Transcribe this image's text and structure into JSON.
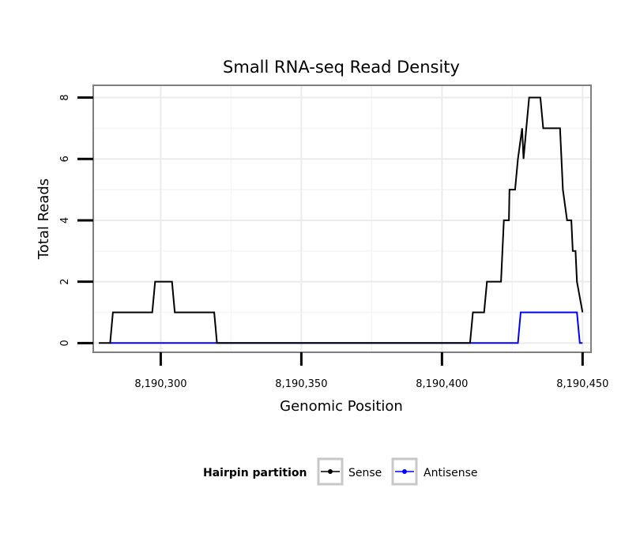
{
  "chart_data": {
    "type": "line",
    "title": "Small RNA-seq Read Density",
    "xlabel": "Genomic Position",
    "ylabel": "Total Reads",
    "xlim": [
      8190276,
      8190453
    ],
    "ylim": [
      -0.3,
      8.4
    ],
    "xticks": [
      8190300,
      8190350,
      8190400,
      8190450
    ],
    "xtick_labels": [
      "8,190,300",
      "8,190,350",
      "8,190,400",
      "8,190,450"
    ],
    "yticks": [
      0,
      2,
      4,
      6,
      8
    ],
    "ytick_labels": [
      "0",
      "2",
      "4",
      "6",
      "8"
    ],
    "grid": true,
    "legend_position": "bottom",
    "legend_title": "Hairpin partition",
    "series": [
      {
        "name": "Sense",
        "color": "#000000",
        "x": [
          8190278,
          8190282,
          8190283,
          8190297,
          8190298,
          8190304,
          8190305,
          8190319,
          8190320,
          8190410,
          8190411,
          8190415,
          8190416,
          8190421,
          8190422,
          8190422.5,
          8190423,
          8190423.8,
          8190424,
          8190426,
          8190427,
          8190428.5,
          8190429,
          8190430,
          8190431,
          8190435,
          8190436,
          8190440,
          8190441,
          8190442,
          8190443,
          8190444.5,
          8190445,
          8190446,
          8190446.5,
          8190447.5,
          8190448,
          8190450
        ],
        "y": [
          0,
          0,
          1,
          1,
          2,
          2,
          1,
          1,
          0,
          0,
          1,
          1,
          2,
          2,
          4,
          4,
          4,
          4,
          5,
          5,
          6,
          7,
          6,
          7,
          8,
          8,
          7,
          7,
          7,
          7,
          5,
          4,
          4,
          4,
          3,
          3,
          2,
          1
        ]
      },
      {
        "name": "Antisense",
        "color": "#0000ff",
        "x": [
          8190282,
          8190427,
          8190428,
          8190448,
          8190449,
          8190450
        ],
        "y": [
          0,
          0,
          1,
          1,
          0,
          0
        ]
      }
    ]
  }
}
